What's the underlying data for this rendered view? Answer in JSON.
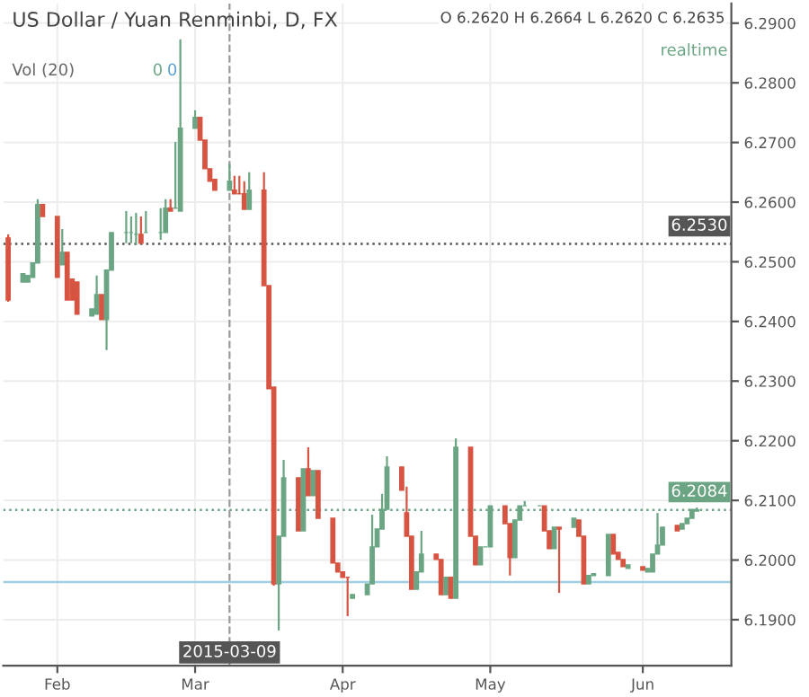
{
  "chart_data": {
    "type": "candlestick",
    "title": "US Dollar / Yuan Renminbi, D, FX",
    "subtitle": "O 6.2620 H 6.2664 L 6.2620 C 6.2635",
    "annotations": [
      "Vol (20)",
      "0",
      "0",
      "realtime"
    ],
    "x": [
      "2015-01-23",
      "2015-01-26",
      "2015-01-27",
      "2015-01-28",
      "2015-01-29",
      "2015-01-30",
      "2015-02-02",
      "2015-02-03",
      "2015-02-04",
      "2015-02-05",
      "2015-02-06",
      "2015-02-09",
      "2015-02-10",
      "2015-02-11",
      "2015-02-12",
      "2015-02-13",
      "2015-02-16",
      "2015-02-17",
      "2015-02-18",
      "2015-02-19",
      "2015-02-20",
      "2015-02-23",
      "2015-02-24",
      "2015-02-25",
      "2015-02-26",
      "2015-02-27",
      "2015-03-02",
      "2015-03-03",
      "2015-03-04",
      "2015-03-05",
      "2015-03-06",
      "2015-03-09",
      "2015-03-10",
      "2015-03-11",
      "2015-03-12",
      "2015-03-13",
      "2015-03-16",
      "2015-03-17",
      "2015-03-18",
      "2015-03-19",
      "2015-03-20",
      "2015-03-23",
      "2015-03-24",
      "2015-03-25",
      "2015-03-26",
      "2015-03-27",
      "2015-03-30",
      "2015-03-31",
      "2015-04-01",
      "2015-04-02",
      "2015-04-03",
      "2015-04-06",
      "2015-04-07",
      "2015-04-08",
      "2015-04-09",
      "2015-04-10",
      "2015-04-13",
      "2015-04-14",
      "2015-04-15",
      "2015-04-16",
      "2015-04-17",
      "2015-04-20",
      "2015-04-21",
      "2015-04-22",
      "2015-04-23",
      "2015-04-24",
      "2015-04-27",
      "2015-04-28",
      "2015-04-29",
      "2015-04-30",
      "2015-05-01",
      "2015-05-04",
      "2015-05-05",
      "2015-05-06",
      "2015-05-07",
      "2015-05-08",
      "2015-05-11",
      "2015-05-12",
      "2015-05-13",
      "2015-05-14",
      "2015-05-15",
      "2015-05-18",
      "2015-05-19",
      "2015-05-20",
      "2015-05-21",
      "2015-05-22",
      "2015-05-25",
      "2015-05-26",
      "2015-05-27",
      "2015-05-28",
      "2015-05-29",
      "2015-06-01",
      "2015-06-02",
      "2015-06-03",
      "2015-06-04",
      "2015-06-05",
      "2015-06-08",
      "2015-06-09",
      "2015-06-10",
      "2015-06-11",
      "2015-06-12"
    ],
    "ohlc": [
      [
        6.254,
        6.2546,
        6.2433,
        6.2436
      ],
      [
        6.2466,
        6.248,
        6.2466,
        6.248
      ],
      [
        6.2466,
        6.2477,
        6.2466,
        6.2477
      ],
      [
        6.2474,
        6.2498,
        6.2474,
        6.2498
      ],
      [
        6.2498,
        6.2605,
        6.2498,
        6.2596
      ],
      [
        6.2596,
        6.2596,
        6.2576,
        6.2576
      ],
      [
        6.2576,
        6.2576,
        6.2474,
        6.2474
      ],
      [
        6.2495,
        6.2555,
        6.2495,
        6.2516
      ],
      [
        6.2516,
        6.2516,
        6.2436,
        6.2436
      ],
      [
        6.2471,
        6.2471,
        6.2436,
        6.2436
      ],
      [
        6.2466,
        6.2466,
        6.2412,
        6.2412
      ],
      [
        6.2409,
        6.2421,
        6.2409,
        6.2421
      ],
      [
        6.2412,
        6.2477,
        6.2412,
        6.2445
      ],
      [
        6.2445,
        6.2445,
        6.2403,
        6.2403
      ],
      [
        6.2403,
        6.2486,
        6.2352,
        6.2486
      ],
      [
        6.2486,
        6.2549,
        6.2486,
        6.2549
      ],
      [
        6.2549,
        6.2585,
        6.2531,
        6.2549
      ],
      [
        6.2549,
        6.2576,
        6.2531,
        6.2549
      ],
      [
        6.2546,
        6.2582,
        6.2528,
        6.2546
      ],
      [
        6.2546,
        6.2576,
        6.2531,
        6.2531
      ],
      [
        6.2549,
        6.2585,
        6.2549,
        6.2549
      ],
      [
        6.2549,
        6.259,
        6.2537,
        6.2549
      ],
      [
        6.2549,
        6.2605,
        6.2549,
        6.259
      ],
      [
        6.259,
        6.2605,
        6.2585,
        6.2585
      ],
      [
        6.259,
        6.2701,
        6.259,
        6.259
      ],
      [
        6.2585,
        6.2873,
        6.2585,
        6.2724
      ],
      [
        6.2724,
        6.2754,
        6.2724,
        6.2742
      ],
      [
        6.2742,
        6.2742,
        6.2704,
        6.2704
      ],
      [
        6.2704,
        6.2704,
        6.2656,
        6.2656
      ],
      [
        6.2656,
        6.2656,
        6.2635,
        6.2635
      ],
      [
        6.2638,
        6.2638,
        6.262,
        6.262
      ],
      [
        6.262,
        6.2664,
        6.262,
        6.2635
      ],
      [
        6.262,
        6.2644,
        6.2614,
        6.2614
      ],
      [
        6.2614,
        6.2644,
        6.2614,
        6.2614
      ],
      [
        6.2614,
        6.2635,
        6.2588,
        6.2588
      ],
      [
        6.2588,
        6.265,
        6.2588,
        6.262
      ],
      [
        6.262,
        6.265,
        6.246,
        6.246
      ],
      [
        6.246,
        6.246,
        6.2287,
        6.2287
      ],
      [
        6.229,
        6.229,
        6.1957,
        6.196
      ],
      [
        6.196,
        6.204,
        6.1882,
        6.204
      ],
      [
        6.204,
        6.2168,
        6.204,
        6.2138
      ],
      [
        6.2138,
        6.2138,
        6.2049,
        6.2049
      ],
      [
        6.2049,
        6.2153,
        6.2049,
        6.2153
      ],
      [
        6.2153,
        6.2189,
        6.2108,
        6.2108
      ],
      [
        6.2108,
        6.215,
        6.2108,
        6.215
      ],
      [
        6.215,
        6.215,
        6.207,
        6.207
      ],
      [
        6.207,
        6.207,
        6.1995,
        6.1995
      ],
      [
        6.1995,
        6.1995,
        6.198,
        6.198
      ],
      [
        6.198,
        6.198,
        6.1971,
        6.1971
      ],
      [
        6.1971,
        6.1971,
        6.1906,
        6.1971
      ],
      [
        6.1936,
        6.1942,
        6.1936,
        6.1942
      ],
      [
        6.1942,
        6.196,
        6.1942,
        6.196
      ],
      [
        6.196,
        6.2076,
        6.196,
        6.2022
      ],
      [
        6.2022,
        6.2052,
        6.2022,
        6.2052
      ],
      [
        6.2052,
        6.2111,
        6.2052,
        6.2085
      ],
      [
        6.2085,
        6.2174,
        6.2085,
        6.2156
      ],
      [
        6.2156,
        6.2156,
        6.2117,
        6.2117
      ],
      [
        6.2079,
        6.2123,
        6.204,
        6.204
      ],
      [
        6.204,
        6.204,
        6.1951,
        6.1951
      ],
      [
        6.1951,
        6.198,
        6.1951,
        6.198
      ],
      [
        6.198,
        6.2049,
        6.198,
        6.201
      ],
      [
        6.201,
        6.201,
        6.2001,
        6.2001
      ],
      [
        6.2001,
        6.2001,
        6.1942,
        6.1942
      ],
      [
        6.1942,
        6.1971,
        6.1942,
        6.1971
      ],
      [
        6.1971,
        6.1971,
        6.1936,
        6.1936
      ],
      [
        6.1936,
        6.2204,
        6.1936,
        6.2189
      ],
      [
        6.2189,
        6.2189,
        6.204,
        6.204
      ],
      [
        6.204,
        6.204,
        6.1992,
        6.1992
      ],
      [
        6.1992,
        6.2022,
        6.1992,
        6.2022
      ],
      [
        6.2022,
        6.2022,
        6.2022,
        6.2022
      ],
      [
        6.2022,
        6.2091,
        6.2022,
        6.2091
      ],
      [
        6.2091,
        6.2091,
        6.2061,
        6.2061
      ],
      [
        6.2061,
        6.2061,
        6.1974,
        6.2004
      ],
      [
        6.2004,
        6.2067,
        6.2004,
        6.2067
      ],
      [
        6.2067,
        6.2091,
        6.2067,
        6.2091
      ],
      [
        6.2091,
        6.2099,
        6.2091,
        6.2091
      ],
      [
        6.2091,
        6.2091,
        6.2091,
        6.2091
      ],
      [
        6.2091,
        6.2091,
        6.2049,
        6.2049
      ],
      [
        6.2049,
        6.2049,
        6.2019,
        6.2019
      ],
      [
        6.2019,
        6.2055,
        6.2019,
        6.2055
      ],
      [
        6.2055,
        6.2055,
        6.1945,
        6.2052
      ],
      [
        6.2055,
        6.207,
        6.2055,
        6.207
      ],
      [
        6.2067,
        6.2067,
        6.204,
        6.204
      ],
      [
        6.204,
        6.204,
        6.196,
        6.196
      ],
      [
        6.196,
        6.1974,
        6.196,
        6.1974
      ],
      [
        6.1974,
        6.1977,
        6.1974,
        6.1977
      ],
      [
        6.1974,
        6.2043,
        6.1974,
        6.2043
      ],
      [
        6.2043,
        6.2043,
        6.201,
        6.201
      ],
      [
        6.2013,
        6.2013,
        6.2001,
        6.2001
      ],
      [
        6.2001,
        6.2001,
        6.1989,
        6.1989
      ],
      [
        6.1986,
        6.1992,
        6.1986,
        6.1992
      ],
      [
        6.1989,
        6.1989,
        6.1983,
        6.1983
      ],
      [
        6.198,
        6.1986,
        6.198,
        6.1986
      ],
      [
        6.198,
        6.201,
        6.198,
        6.201
      ],
      [
        6.201,
        6.2079,
        6.201,
        6.2025
      ],
      [
        6.2025,
        6.2055,
        6.2025,
        6.2055
      ],
      [
        6.2058,
        6.2058,
        6.2049,
        6.2049
      ],
      [
        6.2052,
        6.2061,
        6.2052,
        6.2061
      ],
      [
        6.2061,
        6.207,
        6.2061,
        6.207
      ],
      [
        6.207,
        6.2085,
        6.207,
        6.2085
      ],
      [
        6.2082,
        6.2088,
        6.2082,
        6.2084
      ]
    ],
    "colors": [
      "#d75442",
      "#6ba583",
      "#6ba583",
      "#6ba583",
      "#6ba583",
      "#d75442",
      "#d75442",
      "#6ba583",
      "#d75442",
      "#d75442",
      "#d75442",
      "#6ba583",
      "#6ba583",
      "#d75442",
      "#6ba583",
      "#6ba583",
      "#6ba583",
      "#6ba583",
      "#6ba583",
      "#d75442",
      "#6ba583",
      "#6ba583",
      "#6ba583",
      "#d75442",
      "#6ba583",
      "#6ba583",
      "#6ba583",
      "#d75442",
      "#d75442",
      "#d75442",
      "#d75442",
      "#6ba583",
      "#d75442",
      "#d75442",
      "#d75442",
      "#6ba583",
      "#d75442",
      "#d75442",
      "#d75442",
      "#6ba583",
      "#6ba583",
      "#d75442",
      "#6ba583",
      "#d75442",
      "#6ba583",
      "#d75442",
      "#d75442",
      "#d75442",
      "#d75442",
      "#d75442",
      "#6ba583",
      "#6ba583",
      "#6ba583",
      "#6ba583",
      "#6ba583",
      "#6ba583",
      "#d75442",
      "#d75442",
      "#d75442",
      "#6ba583",
      "#6ba583",
      "#d75442",
      "#d75442",
      "#6ba583",
      "#d75442",
      "#6ba583",
      "#d75442",
      "#d75442",
      "#6ba583",
      "#6ba583",
      "#6ba583",
      "#d75442",
      "#d75442",
      "#6ba583",
      "#6ba583",
      "#6ba583",
      "#6ba583",
      "#d75442",
      "#d75442",
      "#6ba583",
      "#d75442",
      "#6ba583",
      "#d75442",
      "#d75442",
      "#6ba583",
      "#6ba583",
      "#6ba583",
      "#d75442",
      "#d75442",
      "#d75442",
      "#6ba583",
      "#d75442",
      "#6ba583",
      "#6ba583",
      "#6ba583",
      "#6ba583",
      "#d75442",
      "#6ba583",
      "#6ba583",
      "#6ba583",
      "#6ba583"
    ],
    "xlim": [
      "2015-01-22",
      "2015-06-19"
    ],
    "xticks": [
      {
        "value": "2015-02-02",
        "label": "Feb"
      },
      {
        "value": "2015-03-02",
        "label": "Mar"
      },
      {
        "value": "2015-04-01",
        "label": "Apr"
      },
      {
        "value": "2015-05-01",
        "label": "May"
      },
      {
        "value": "2015-06-01",
        "label": "Jun"
      }
    ],
    "ylim": [
      6.1823,
      6.2933
    ],
    "yticks": [
      {
        "value": 6.19,
        "label": "6.1900"
      },
      {
        "value": 6.2,
        "label": "6.2000"
      },
      {
        "value": 6.21,
        "label": "6.2100"
      },
      {
        "value": 6.22,
        "label": "6.2200"
      },
      {
        "value": 6.23,
        "label": "6.2300"
      },
      {
        "value": 6.24,
        "label": "6.2400"
      },
      {
        "value": 6.25,
        "label": "6.2500"
      },
      {
        "value": 6.26,
        "label": "6.2600"
      },
      {
        "value": 6.27,
        "label": "6.2700"
      },
      {
        "value": 6.28,
        "label": "6.2800"
      },
      {
        "value": 6.29,
        "label": "6.2900"
      }
    ],
    "ref_lines": [
      {
        "axis": "y",
        "value": 6.253,
        "label": "6.2530",
        "color": "#555555",
        "line_style": "dotted"
      },
      {
        "axis": "y",
        "value": 6.2084,
        "label": "6.2084",
        "color": "#6ba583",
        "line_style": "dotted"
      },
      {
        "axis": "y",
        "value": 6.1963,
        "label": null,
        "color": "#9fcfe0",
        "line_style": "solid"
      },
      {
        "axis": "x",
        "value": "2015-03-09",
        "label": "2015-03-09",
        "color": "#999999",
        "line_style": "dashed"
      }
    ],
    "grid": true
  }
}
